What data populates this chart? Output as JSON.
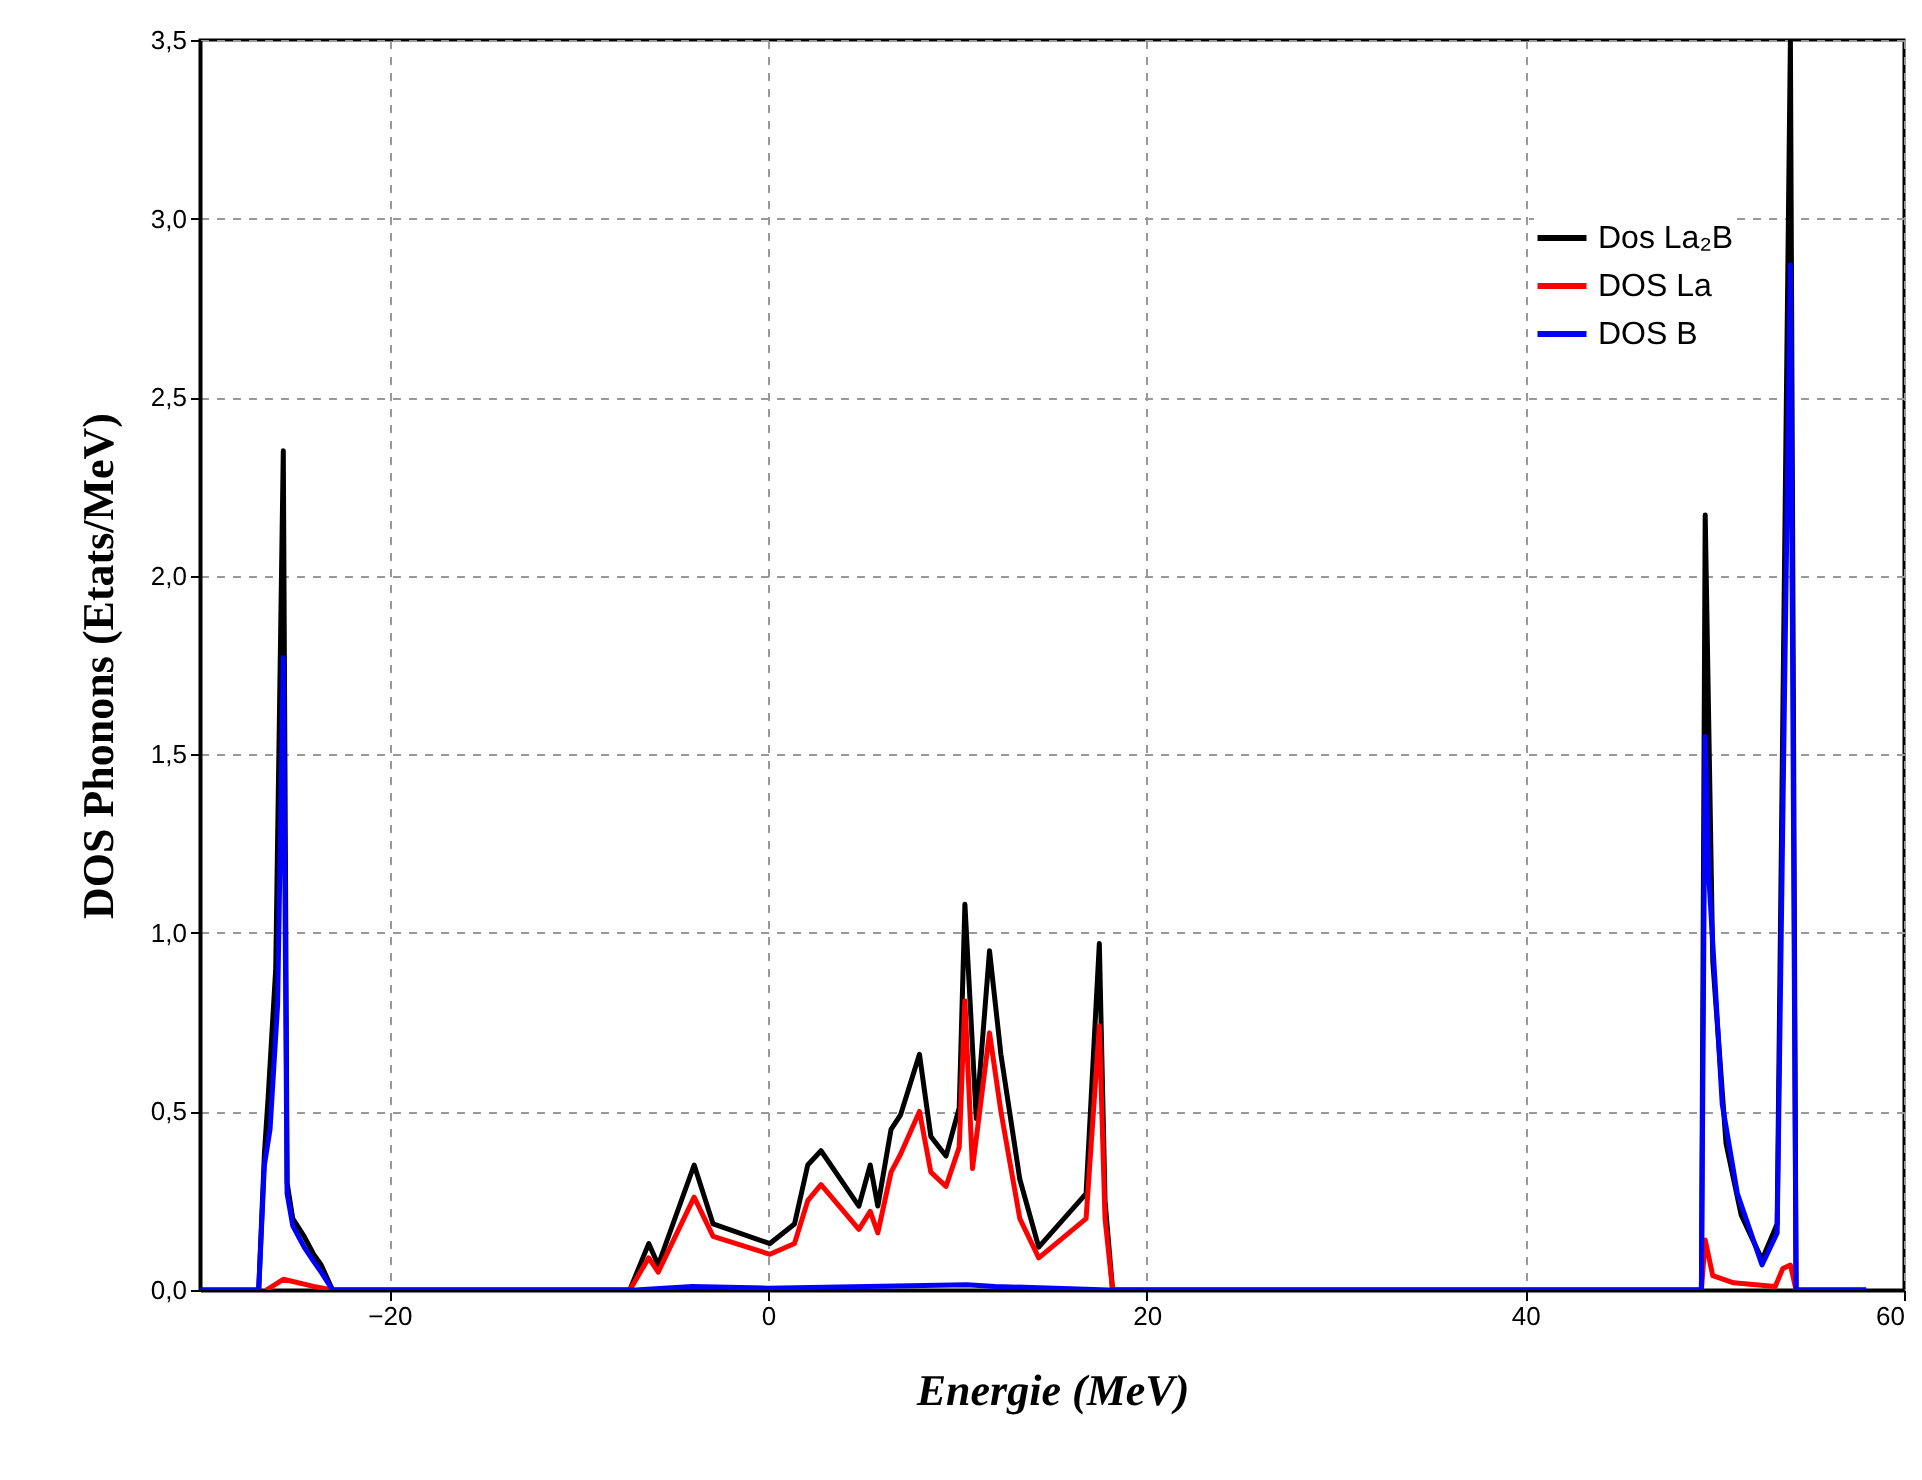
{
  "chart_data": {
    "type": "line",
    "xlabel": "Energie (MeV)",
    "ylabel": "DOS Phonons (Etats/MeV)",
    "xlim": [
      -30,
      60
    ],
    "xticks": [
      -20,
      0,
      20,
      40,
      60
    ],
    "ylim": [
      0,
      3.5
    ],
    "yticks": [
      {
        "value": 0,
        "label": "0,0"
      },
      {
        "value": 0.5,
        "label": "0,5"
      },
      {
        "value": 1,
        "label": "1,0"
      },
      {
        "value": 1.5,
        "label": "1,5"
      },
      {
        "value": 2,
        "label": "2,0"
      },
      {
        "value": 2.5,
        "label": "2,5"
      },
      {
        "value": 3,
        "label": "3,0"
      },
      {
        "value": 3.5,
        "label": "3,5"
      }
    ],
    "grid": true,
    "legend": "top right",
    "marker": "none",
    "line_style": "solid",
    "series": [
      {
        "name": "Dos La₂B",
        "color": "#000000",
        "x": [
          -30,
          -26.9,
          -26.6,
          -26.4,
          -26.0,
          -25.6,
          -25.4,
          -25.1,
          -24.5,
          -24.0,
          -23.6,
          -23.0,
          -7.3,
          -6.3,
          -5.8,
          -3.9,
          -2.9,
          0.1,
          1.4,
          2.1,
          2.8,
          4.8,
          5.4,
          5.8,
          6.5,
          7.0,
          8.0,
          8.6,
          9.4,
          10.1,
          10.4,
          11.0,
          11.7,
          12.3,
          13.3,
          14.3,
          16.8,
          17.5,
          17.8,
          18.2,
          49.3,
          49.5,
          49.9,
          50.6,
          51.4,
          52.5,
          53.3,
          54.0,
          54.3,
          58
        ],
        "values": [
          0,
          0,
          0.38,
          0.54,
          0.9,
          2.35,
          0.3,
          0.2,
          0.15,
          0.1,
          0.07,
          0,
          0,
          0.13,
          0.07,
          0.35,
          0.185,
          0.13,
          0.185,
          0.35,
          0.39,
          0.235,
          0.35,
          0.235,
          0.45,
          0.49,
          0.66,
          0.43,
          0.375,
          0.51,
          1.08,
          0.48,
          0.95,
          0.66,
          0.31,
          0.12,
          0.27,
          0.97,
          0.25,
          0,
          0,
          2.17,
          0.92,
          0.41,
          0.21,
          0.085,
          0.185,
          3.5,
          0,
          0
        ]
      },
      {
        "name": "DOS La",
        "color": "#ff0000",
        "x": [
          -26.5,
          -25.6,
          -24.0,
          -23.0,
          -7.3,
          -6.3,
          -5.8,
          -3.9,
          -2.9,
          0.1,
          1.4,
          2.1,
          2.8,
          4.8,
          5.4,
          5.8,
          6.5,
          7.0,
          8.0,
          8.6,
          9.4,
          10.1,
          10.4,
          10.8,
          11.7,
          12.3,
          13.3,
          14.3,
          16.8,
          17.5,
          17.8,
          18.2,
          49.3,
          49.5,
          49.9,
          51.0,
          53.2,
          53.6,
          54.0,
          54.3
        ],
        "values": [
          0,
          0.03,
          0.01,
          0,
          0,
          0.09,
          0.05,
          0.26,
          0.15,
          0.1,
          0.13,
          0.25,
          0.295,
          0.17,
          0.22,
          0.16,
          0.33,
          0.38,
          0.5,
          0.33,
          0.29,
          0.4,
          0.81,
          0.34,
          0.72,
          0.5,
          0.2,
          0.09,
          0.2,
          0.74,
          0.2,
          0,
          0,
          0.14,
          0.04,
          0.02,
          0.01,
          0.06,
          0.07,
          0
        ]
      },
      {
        "name": "DOS B",
        "color": "#0000ff",
        "x": [
          -30,
          -26.9,
          -26.6,
          -26.3,
          -25.9,
          -25.6,
          -25.4,
          -25.1,
          -24.5,
          -24.0,
          -23.6,
          -23.0,
          -7.0,
          -4.0,
          0.0,
          10.5,
          12.0,
          18.0,
          49.3,
          49.5,
          49.7,
          50.4,
          51.2,
          52.5,
          53.3,
          54.0,
          54.3,
          58
        ],
        "values": [
          0,
          0,
          0.35,
          0.45,
          0.8,
          1.77,
          0.27,
          0.18,
          0.12,
          0.08,
          0.05,
          0,
          0,
          0.01,
          0.005,
          0.015,
          0.01,
          0,
          0,
          1.55,
          1.15,
          0.52,
          0.27,
          0.07,
          0.16,
          2.87,
          0,
          0
        ]
      }
    ]
  }
}
